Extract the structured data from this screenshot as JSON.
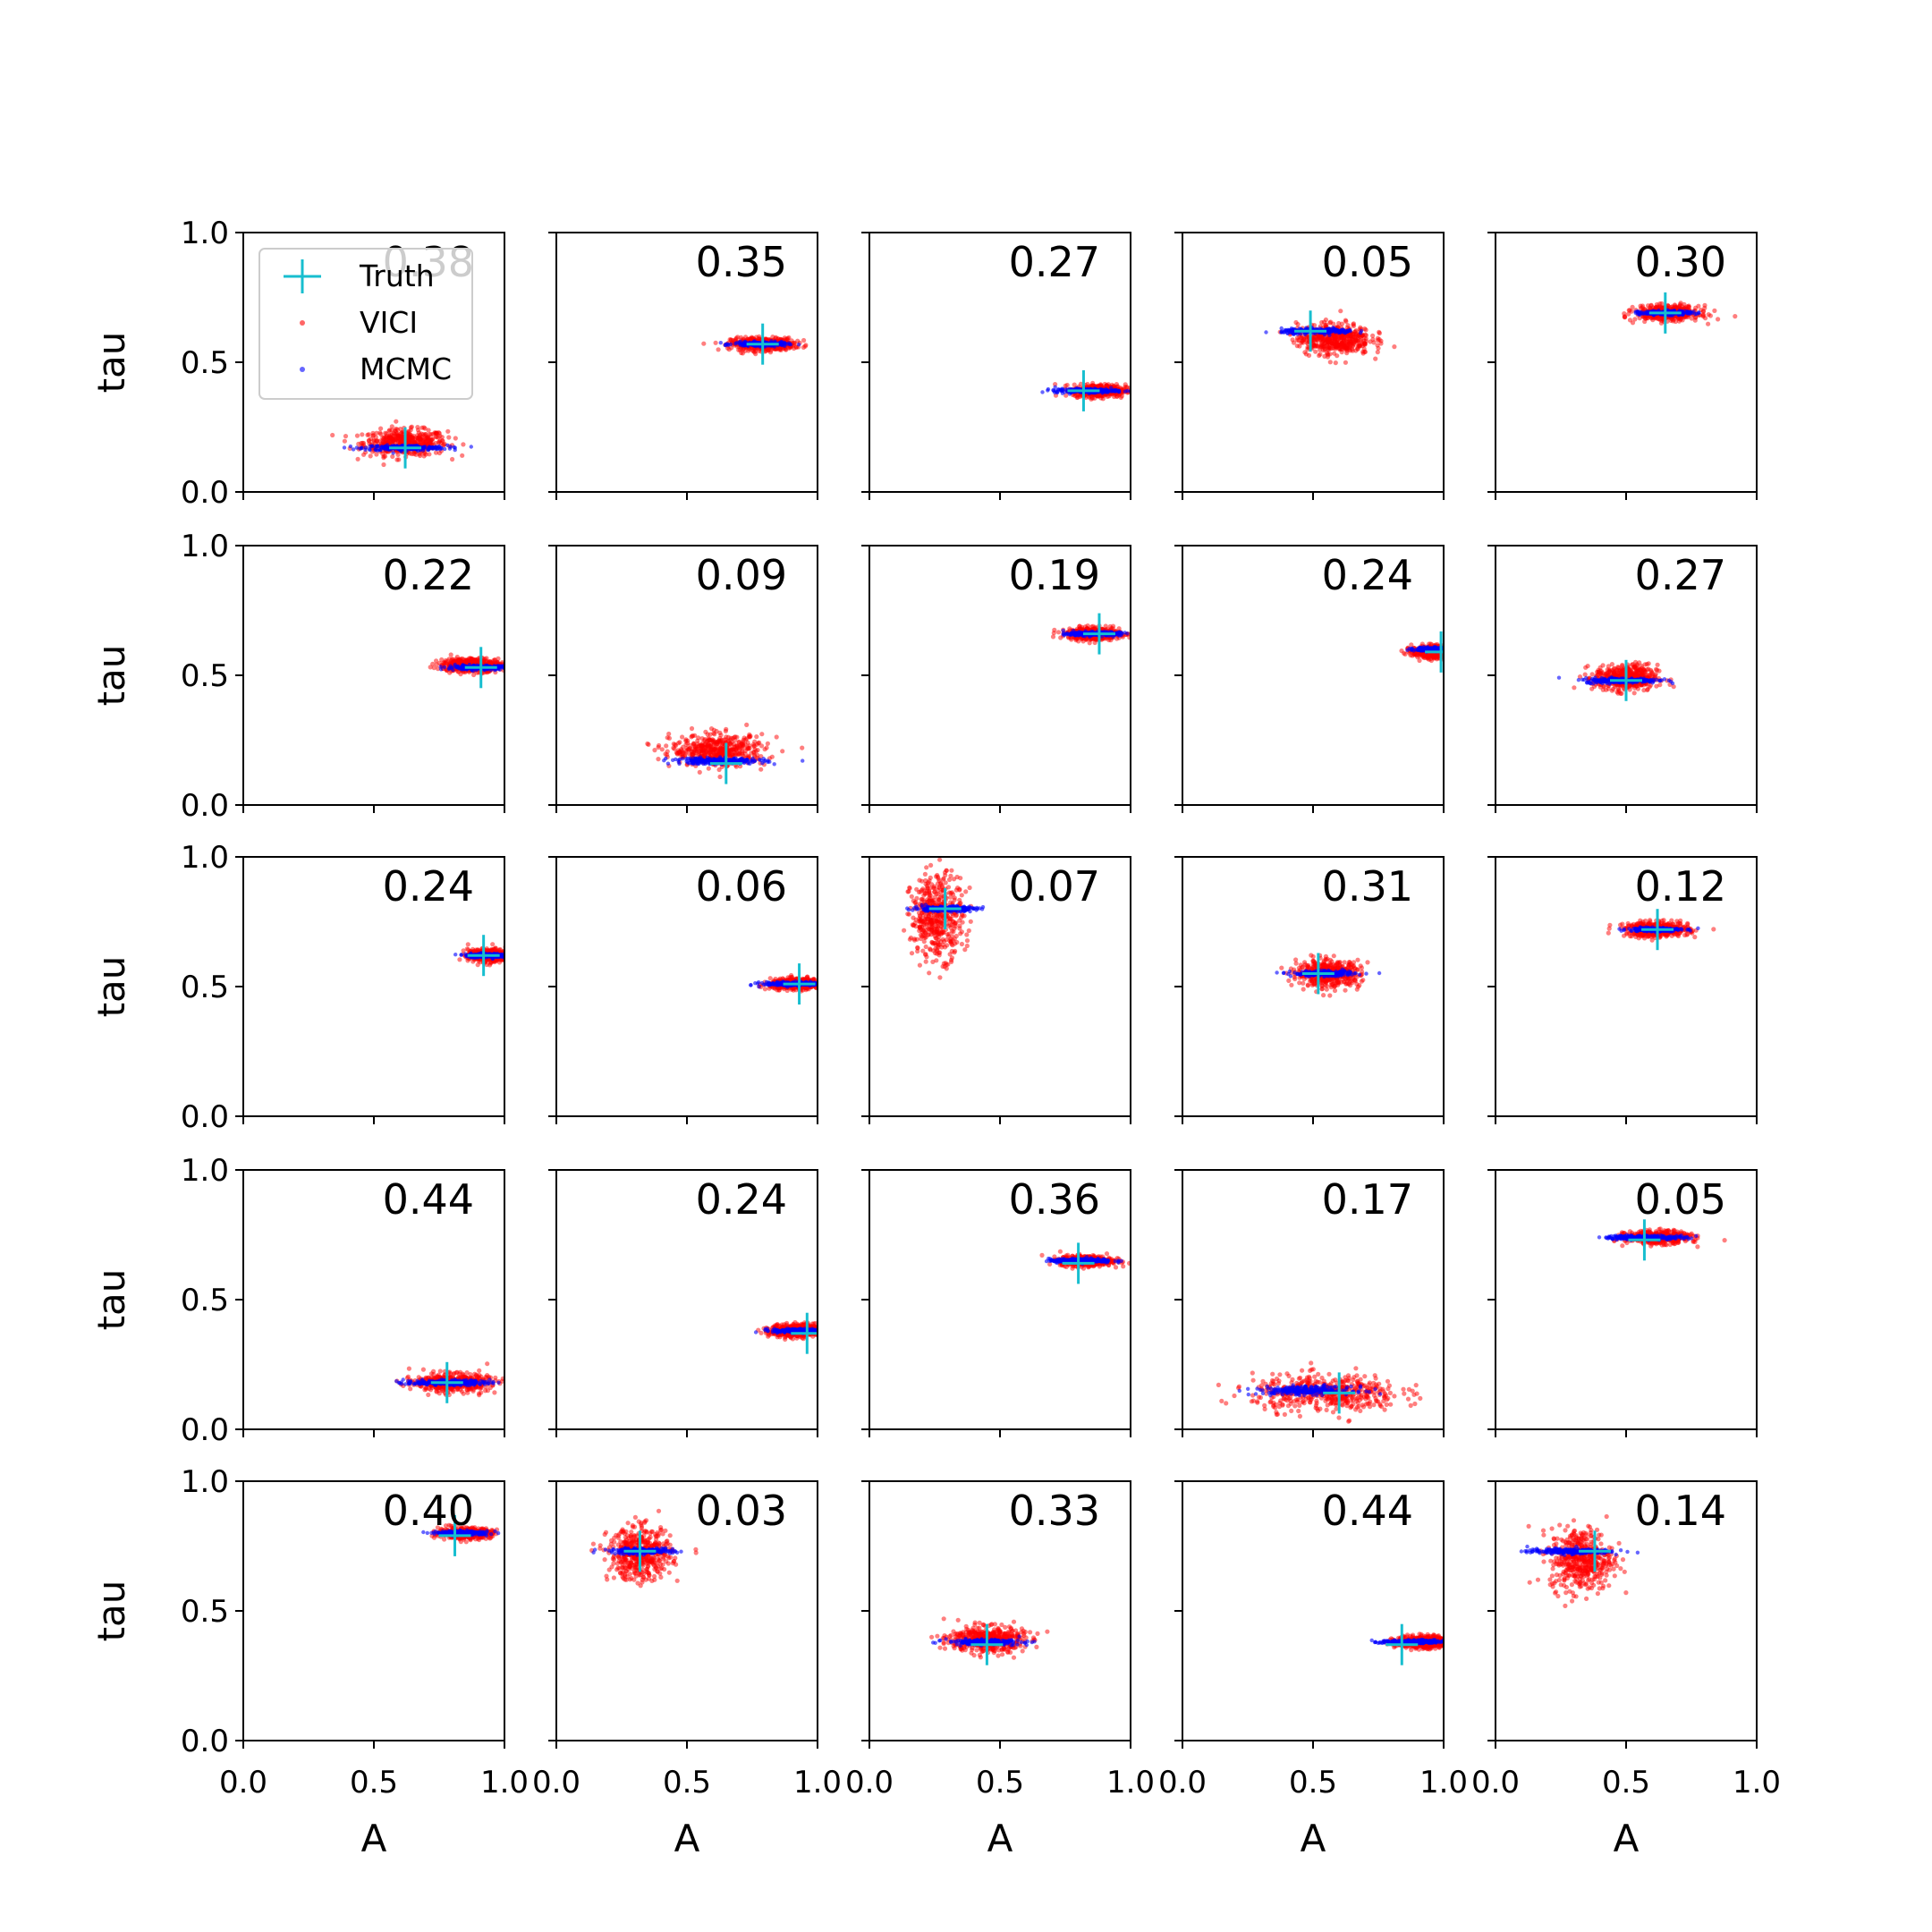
{
  "chart_data": {
    "type": "scatter",
    "grid": "5x5 small multiples",
    "xlabel": "A",
    "ylabel": "tau",
    "xlim": [
      0.0,
      1.0
    ],
    "ylim": [
      0.0,
      1.0
    ],
    "xticks": [
      "0.0",
      "0.5",
      "1.0"
    ],
    "yticks": [
      "0.0",
      "0.5",
      "1.0"
    ],
    "legend": {
      "placement": "upper-left of first panel",
      "entries": [
        {
          "label": "Truth",
          "marker": "plus",
          "color": "#17becf"
        },
        {
          "label": "VICI",
          "marker": "dot",
          "color": "#ff0000"
        },
        {
          "label": "MCMC",
          "marker": "dot",
          "color": "#0000ff"
        }
      ]
    },
    "colors": {
      "truth": "#17becf",
      "vici": "#ff0000",
      "mcmc": "#0000ff"
    },
    "panels": [
      {
        "score": "0.38",
        "truth": [
          0.62,
          0.17
        ],
        "vici": {
          "mean": [
            0.62,
            0.19
          ],
          "sd": [
            0.08,
            0.025
          ]
        },
        "mcmc": {
          "mean": [
            0.62,
            0.17
          ],
          "sd": [
            0.08,
            0.005
          ]
        }
      },
      {
        "score": "0.35",
        "truth": [
          0.79,
          0.57
        ],
        "vici": {
          "mean": [
            0.79,
            0.57
          ],
          "sd": [
            0.06,
            0.012
          ]
        },
        "mcmc": {
          "mean": [
            0.78,
            0.57
          ],
          "sd": [
            0.05,
            0.004
          ]
        }
      },
      {
        "score": "0.27",
        "truth": [
          0.82,
          0.39
        ],
        "vici": {
          "mean": [
            0.88,
            0.39
          ],
          "sd": [
            0.05,
            0.012
          ]
        },
        "mcmc": {
          "mean": [
            0.83,
            0.39
          ],
          "sd": [
            0.06,
            0.004
          ]
        }
      },
      {
        "score": "0.05",
        "truth": [
          0.49,
          0.62
        ],
        "vici": {
          "mean": [
            0.58,
            0.59
          ],
          "sd": [
            0.07,
            0.03
          ]
        },
        "mcmc": {
          "mean": [
            0.52,
            0.62
          ],
          "sd": [
            0.07,
            0.005
          ]
        }
      },
      {
        "score": "0.30",
        "truth": [
          0.65,
          0.69
        ],
        "vici": {
          "mean": [
            0.66,
            0.69
          ],
          "sd": [
            0.06,
            0.014
          ]
        },
        "mcmc": {
          "mean": [
            0.65,
            0.69
          ],
          "sd": [
            0.05,
            0.004
          ]
        }
      },
      {
        "score": "0.22",
        "truth": [
          0.91,
          0.53
        ],
        "vici": {
          "mean": [
            0.87,
            0.54
          ],
          "sd": [
            0.06,
            0.013
          ]
        },
        "mcmc": {
          "mean": [
            0.9,
            0.53
          ],
          "sd": [
            0.06,
            0.004
          ]
        }
      },
      {
        "score": "0.09",
        "truth": [
          0.65,
          0.16
        ],
        "vici": {
          "mean": [
            0.62,
            0.21
          ],
          "sd": [
            0.09,
            0.03
          ]
        },
        "mcmc": {
          "mean": [
            0.62,
            0.17
          ],
          "sd": [
            0.09,
            0.006
          ]
        }
      },
      {
        "score": "0.19",
        "truth": [
          0.88,
          0.66
        ],
        "vici": {
          "mean": [
            0.86,
            0.66
          ],
          "sd": [
            0.05,
            0.012
          ]
        },
        "mcmc": {
          "mean": [
            0.86,
            0.66
          ],
          "sd": [
            0.05,
            0.004
          ]
        }
      },
      {
        "score": "0.24",
        "truth": [
          0.99,
          0.59
        ],
        "vici": {
          "mean": [
            0.96,
            0.59
          ],
          "sd": [
            0.04,
            0.012
          ]
        },
        "mcmc": {
          "mean": [
            0.97,
            0.6
          ],
          "sd": [
            0.04,
            0.004
          ]
        }
      },
      {
        "score": "0.27",
        "truth": [
          0.5,
          0.48
        ],
        "vici": {
          "mean": [
            0.5,
            0.49
          ],
          "sd": [
            0.06,
            0.025
          ]
        },
        "mcmc": {
          "mean": [
            0.48,
            0.48
          ],
          "sd": [
            0.07,
            0.005
          ]
        }
      },
      {
        "score": "0.24",
        "truth": [
          0.92,
          0.62
        ],
        "vici": {
          "mean": [
            0.94,
            0.62
          ],
          "sd": [
            0.04,
            0.012
          ]
        },
        "mcmc": {
          "mean": [
            0.93,
            0.62
          ],
          "sd": [
            0.04,
            0.004
          ]
        }
      },
      {
        "score": "0.06",
        "truth": [
          0.93,
          0.51
        ],
        "vici": {
          "mean": [
            0.92,
            0.51
          ],
          "sd": [
            0.05,
            0.01
          ]
        },
        "mcmc": {
          "mean": [
            0.91,
            0.51
          ],
          "sd": [
            0.06,
            0.004
          ]
        }
      },
      {
        "score": "0.07",
        "truth": [
          0.29,
          0.8
        ],
        "vici": {
          "mean": [
            0.26,
            0.77
          ],
          "sd": [
            0.05,
            0.08
          ]
        },
        "mcmc": {
          "mean": [
            0.29,
            0.8
          ],
          "sd": [
            0.06,
            0.005
          ]
        }
      },
      {
        "score": "0.31",
        "truth": [
          0.52,
          0.55
        ],
        "vici": {
          "mean": [
            0.56,
            0.55
          ],
          "sd": [
            0.06,
            0.025
          ]
        },
        "mcmc": {
          "mean": [
            0.54,
            0.55
          ],
          "sd": [
            0.06,
            0.005
          ]
        }
      },
      {
        "score": "0.12",
        "truth": [
          0.62,
          0.72
        ],
        "vici": {
          "mean": [
            0.62,
            0.72
          ],
          "sd": [
            0.06,
            0.014
          ]
        },
        "mcmc": {
          "mean": [
            0.61,
            0.72
          ],
          "sd": [
            0.05,
            0.004
          ]
        }
      },
      {
        "score": "0.44",
        "truth": [
          0.78,
          0.18
        ],
        "vici": {
          "mean": [
            0.8,
            0.18
          ],
          "sd": [
            0.07,
            0.017
          ]
        },
        "mcmc": {
          "mean": [
            0.78,
            0.18
          ],
          "sd": [
            0.08,
            0.005
          ]
        }
      },
      {
        "score": "0.24",
        "truth": [
          0.96,
          0.37
        ],
        "vici": {
          "mean": [
            0.92,
            0.38
          ],
          "sd": [
            0.05,
            0.013
          ]
        },
        "mcmc": {
          "mean": [
            0.93,
            0.38
          ],
          "sd": [
            0.05,
            0.004
          ]
        }
      },
      {
        "score": "0.36",
        "truth": [
          0.8,
          0.64
        ],
        "vici": {
          "mean": [
            0.83,
            0.65
          ],
          "sd": [
            0.05,
            0.01
          ]
        },
        "mcmc": {
          "mean": [
            0.81,
            0.65
          ],
          "sd": [
            0.06,
            0.004
          ]
        }
      },
      {
        "score": "0.17",
        "truth": [
          0.6,
          0.14
        ],
        "vici": {
          "mean": [
            0.55,
            0.14
          ],
          "sd": [
            0.14,
            0.035
          ]
        },
        "mcmc": {
          "mean": [
            0.47,
            0.15
          ],
          "sd": [
            0.09,
            0.008
          ]
        }
      },
      {
        "score": "0.05",
        "truth": [
          0.57,
          0.73
        ],
        "vici": {
          "mean": [
            0.62,
            0.74
          ],
          "sd": [
            0.06,
            0.012
          ]
        },
        "mcmc": {
          "mean": [
            0.57,
            0.74
          ],
          "sd": [
            0.08,
            0.004
          ]
        }
      },
      {
        "score": "0.40",
        "truth": [
          0.81,
          0.79
        ],
        "vici": {
          "mean": [
            0.85,
            0.8
          ],
          "sd": [
            0.05,
            0.01
          ]
        },
        "mcmc": {
          "mean": [
            0.84,
            0.8
          ],
          "sd": [
            0.05,
            0.004
          ]
        }
      },
      {
        "score": "0.03",
        "truth": [
          0.32,
          0.73
        ],
        "vici": {
          "mean": [
            0.32,
            0.72
          ],
          "sd": [
            0.06,
            0.05
          ]
        },
        "mcmc": {
          "mean": [
            0.33,
            0.73
          ],
          "sd": [
            0.06,
            0.005
          ]
        }
      },
      {
        "score": "0.33",
        "truth": [
          0.45,
          0.37
        ],
        "vici": {
          "mean": [
            0.45,
            0.39
          ],
          "sd": [
            0.07,
            0.025
          ]
        },
        "mcmc": {
          "mean": [
            0.44,
            0.38
          ],
          "sd": [
            0.07,
            0.005
          ]
        }
      },
      {
        "score": "0.44",
        "truth": [
          0.84,
          0.37
        ],
        "vici": {
          "mean": [
            0.92,
            0.38
          ],
          "sd": [
            0.05,
            0.012
          ]
        },
        "mcmc": {
          "mean": [
            0.88,
            0.38
          ],
          "sd": [
            0.06,
            0.004
          ]
        }
      },
      {
        "score": "0.14",
        "truth": [
          0.38,
          0.73
        ],
        "vici": {
          "mean": [
            0.33,
            0.7
          ],
          "sd": [
            0.06,
            0.06
          ]
        },
        "mcmc": {
          "mean": [
            0.28,
            0.73
          ],
          "sd": [
            0.08,
            0.005
          ]
        }
      }
    ]
  }
}
